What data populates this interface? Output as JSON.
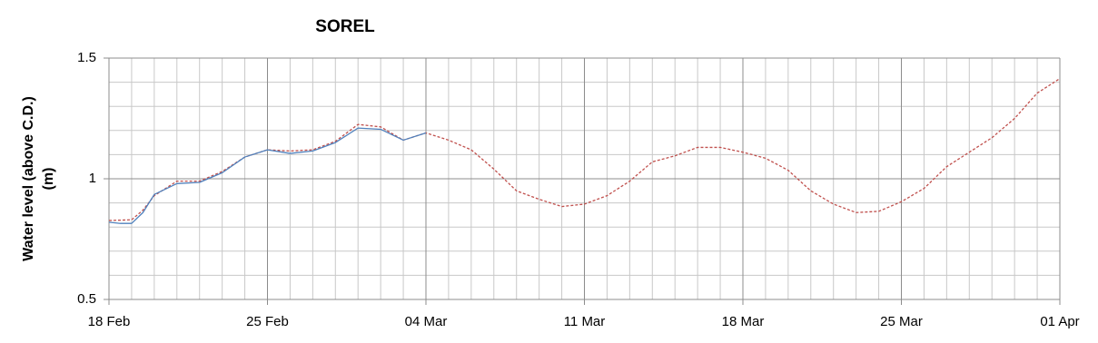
{
  "chart_data": {
    "type": "line",
    "title": "SOREL",
    "y_label": [
      "Water level (above C.D.)",
      "(m)"
    ],
    "xlim": [
      0,
      42
    ],
    "xticks": [
      {
        "value": 0,
        "label": "18 Feb"
      },
      {
        "value": 7,
        "label": "25 Feb"
      },
      {
        "value": 14,
        "label": "04 Mar"
      },
      {
        "value": 21,
        "label": "11 Mar"
      },
      {
        "value": 28,
        "label": "18 Mar"
      },
      {
        "value": 35,
        "label": "25 Mar"
      },
      {
        "value": 42,
        "label": "01 Apr"
      }
    ],
    "ylim": [
      0.5,
      1.5
    ],
    "yticks": [
      0.5,
      1,
      1.5
    ],
    "grid": true,
    "series": [
      {
        "color": "#c0504d",
        "dashed": true,
        "x": [
          0,
          1,
          1.5,
          2,
          3,
          4,
          5,
          6,
          7,
          8,
          9,
          10,
          11,
          12,
          13,
          14,
          15,
          16,
          17,
          18,
          19,
          20,
          21,
          22,
          23,
          24,
          25,
          26,
          27,
          28,
          29,
          30,
          31,
          32,
          33,
          34,
          35,
          36,
          37,
          38,
          39,
          40,
          41,
          42
        ],
        "values": [
          0.827,
          0.83,
          0.87,
          0.93,
          0.99,
          0.99,
          1.03,
          1.09,
          1.12,
          1.115,
          1.12,
          1.155,
          1.225,
          1.215,
          1.16,
          1.19,
          1.16,
          1.12,
          1.04,
          0.95,
          0.915,
          0.885,
          0.895,
          0.93,
          0.99,
          1.07,
          1.095,
          1.13,
          1.13,
          1.11,
          1.085,
          1.035,
          0.95,
          0.895,
          0.86,
          0.865,
          0.905,
          0.96,
          1.05,
          1.11,
          1.17,
          1.25,
          1.355,
          1.415
        ]
      },
      {
        "color": "#4f81bd",
        "dashed": false,
        "x": [
          0,
          0.5,
          1,
          1.5,
          2,
          3,
          4,
          5,
          6,
          7,
          8,
          9,
          10,
          11,
          12,
          13,
          14
        ],
        "values": [
          0.82,
          0.815,
          0.815,
          0.86,
          0.935,
          0.98,
          0.985,
          1.025,
          1.09,
          1.12,
          1.105,
          1.115,
          1.15,
          1.21,
          1.205,
          1.16,
          1.19
        ]
      }
    ]
  }
}
